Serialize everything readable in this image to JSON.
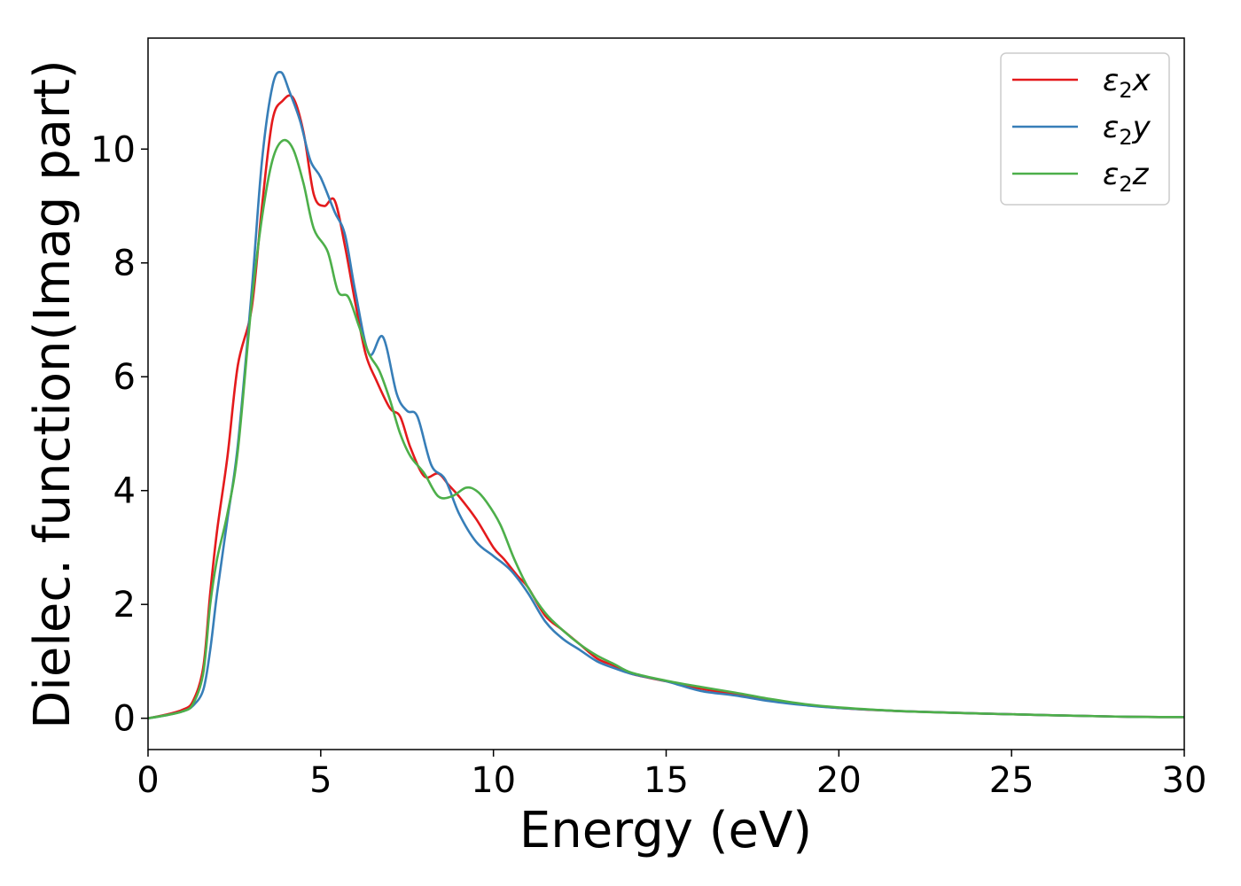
{
  "chart_data": {
    "type": "line",
    "title": "",
    "xlabel": "Energy (eV)",
    "ylabel": "Dielec. function(Imag part)",
    "xlim": [
      0,
      30
    ],
    "ylim": [
      -0.55,
      11.95
    ],
    "xticks": [
      "0",
      "5",
      "10",
      "15",
      "20",
      "25",
      "30"
    ],
    "yticks": [
      "0",
      "2",
      "4",
      "6",
      "8",
      "10"
    ],
    "grid": false,
    "legend_position": "top-right",
    "series": [
      {
        "name": "ε₂x",
        "legend_base": "ε",
        "legend_sub": "2",
        "legend_suffix": "x",
        "color": "#e41a1c",
        "points": [
          [
            0,
            0
          ],
          [
            0.5,
            0.06
          ],
          [
            1.0,
            0.15
          ],
          [
            1.3,
            0.3
          ],
          [
            1.6,
            0.9
          ],
          [
            1.8,
            2.2
          ],
          [
            2.0,
            3.3
          ],
          [
            2.3,
            4.6
          ],
          [
            2.6,
            6.2
          ],
          [
            3.0,
            7.2
          ],
          [
            3.3,
            9.0
          ],
          [
            3.6,
            10.5
          ],
          [
            3.9,
            10.85
          ],
          [
            4.2,
            10.9
          ],
          [
            4.5,
            10.3
          ],
          [
            4.8,
            9.2
          ],
          [
            5.1,
            9.0
          ],
          [
            5.4,
            9.1
          ],
          [
            5.7,
            8.3
          ],
          [
            6.0,
            7.3
          ],
          [
            6.3,
            6.4
          ],
          [
            6.6,
            5.95
          ],
          [
            7.0,
            5.45
          ],
          [
            7.3,
            5.3
          ],
          [
            7.6,
            4.75
          ],
          [
            8.0,
            4.25
          ],
          [
            8.4,
            4.3
          ],
          [
            8.7,
            4.1
          ],
          [
            9.0,
            3.9
          ],
          [
            9.5,
            3.5
          ],
          [
            10.0,
            3.0
          ],
          [
            10.3,
            2.8
          ],
          [
            10.7,
            2.5
          ],
          [
            11.0,
            2.3
          ],
          [
            11.5,
            1.8
          ],
          [
            12.0,
            1.55
          ],
          [
            12.5,
            1.3
          ],
          [
            13.0,
            1.05
          ],
          [
            13.5,
            0.92
          ],
          [
            14.0,
            0.78
          ],
          [
            15.0,
            0.65
          ],
          [
            16.0,
            0.52
          ],
          [
            17.0,
            0.42
          ],
          [
            18.0,
            0.32
          ],
          [
            19.0,
            0.24
          ],
          [
            20.0,
            0.18
          ],
          [
            22.0,
            0.12
          ],
          [
            25.0,
            0.07
          ],
          [
            28.0,
            0.03
          ],
          [
            30.0,
            0.02
          ]
        ]
      },
      {
        "name": "ε₂y",
        "legend_base": "ε",
        "legend_sub": "2",
        "legend_suffix": "y",
        "color": "#377eb8",
        "points": [
          [
            0,
            0
          ],
          [
            0.5,
            0.05
          ],
          [
            1.0,
            0.12
          ],
          [
            1.3,
            0.22
          ],
          [
            1.6,
            0.5
          ],
          [
            1.8,
            1.2
          ],
          [
            2.0,
            2.2
          ],
          [
            2.3,
            3.5
          ],
          [
            2.6,
            4.8
          ],
          [
            3.0,
            7.5
          ],
          [
            3.3,
            9.8
          ],
          [
            3.6,
            11.1
          ],
          [
            3.85,
            11.35
          ],
          [
            4.1,
            11.0
          ],
          [
            4.4,
            10.5
          ],
          [
            4.7,
            9.8
          ],
          [
            5.0,
            9.5
          ],
          [
            5.4,
            8.9
          ],
          [
            5.7,
            8.5
          ],
          [
            6.0,
            7.5
          ],
          [
            6.4,
            6.4
          ],
          [
            6.8,
            6.7
          ],
          [
            7.2,
            5.7
          ],
          [
            7.5,
            5.4
          ],
          [
            7.8,
            5.3
          ],
          [
            8.2,
            4.45
          ],
          [
            8.6,
            4.2
          ],
          [
            9.0,
            3.6
          ],
          [
            9.5,
            3.1
          ],
          [
            10.0,
            2.85
          ],
          [
            10.5,
            2.6
          ],
          [
            11.0,
            2.2
          ],
          [
            11.5,
            1.7
          ],
          [
            12.0,
            1.4
          ],
          [
            12.5,
            1.2
          ],
          [
            13.0,
            1.0
          ],
          [
            13.5,
            0.88
          ],
          [
            14.0,
            0.78
          ],
          [
            15.0,
            0.65
          ],
          [
            16.0,
            0.48
          ],
          [
            17.0,
            0.4
          ],
          [
            18.0,
            0.3
          ],
          [
            19.0,
            0.23
          ],
          [
            20.0,
            0.18
          ],
          [
            22.0,
            0.12
          ],
          [
            25.0,
            0.07
          ],
          [
            28.0,
            0.03
          ],
          [
            30.0,
            0.02
          ]
        ]
      },
      {
        "name": "ε₂z",
        "legend_base": "ε",
        "legend_sub": "2",
        "legend_suffix": "z",
        "color": "#4daf4a",
        "points": [
          [
            0,
            0
          ],
          [
            0.5,
            0.05
          ],
          [
            1.0,
            0.12
          ],
          [
            1.3,
            0.25
          ],
          [
            1.6,
            0.8
          ],
          [
            1.8,
            2.0
          ],
          [
            2.0,
            2.8
          ],
          [
            2.3,
            3.6
          ],
          [
            2.6,
            4.7
          ],
          [
            3.0,
            7.3
          ],
          [
            3.3,
            8.8
          ],
          [
            3.6,
            9.8
          ],
          [
            3.9,
            10.15
          ],
          [
            4.2,
            10.0
          ],
          [
            4.5,
            9.4
          ],
          [
            4.8,
            8.6
          ],
          [
            5.2,
            8.2
          ],
          [
            5.5,
            7.5
          ],
          [
            5.8,
            7.4
          ],
          [
            6.1,
            6.9
          ],
          [
            6.4,
            6.4
          ],
          [
            6.7,
            6.1
          ],
          [
            7.0,
            5.6
          ],
          [
            7.3,
            5.0
          ],
          [
            7.6,
            4.6
          ],
          [
            8.0,
            4.3
          ],
          [
            8.4,
            3.9
          ],
          [
            8.8,
            3.9
          ],
          [
            9.2,
            4.05
          ],
          [
            9.5,
            4.0
          ],
          [
            9.8,
            3.8
          ],
          [
            10.2,
            3.4
          ],
          [
            10.6,
            2.8
          ],
          [
            11.0,
            2.3
          ],
          [
            11.5,
            1.85
          ],
          [
            12.0,
            1.55
          ],
          [
            12.5,
            1.3
          ],
          [
            13.0,
            1.1
          ],
          [
            13.5,
            0.95
          ],
          [
            14.0,
            0.8
          ],
          [
            15.0,
            0.66
          ],
          [
            16.0,
            0.55
          ],
          [
            17.0,
            0.45
          ],
          [
            18.0,
            0.34
          ],
          [
            19.0,
            0.25
          ],
          [
            20.0,
            0.19
          ],
          [
            22.0,
            0.12
          ],
          [
            25.0,
            0.07
          ],
          [
            28.0,
            0.03
          ],
          [
            30.0,
            0.02
          ]
        ]
      }
    ]
  }
}
